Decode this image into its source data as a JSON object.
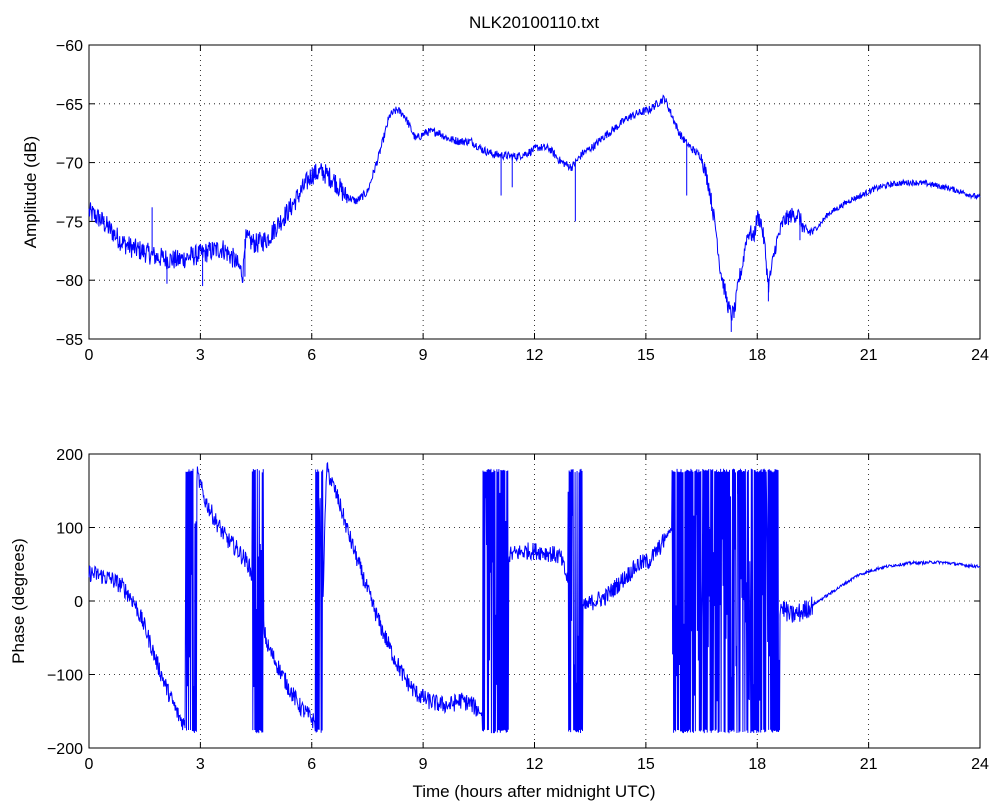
{
  "chart_data": [
    {
      "type": "line",
      "title": "NLK20100110.txt",
      "xlabel": "",
      "ylabel": "Amplitude (dB)",
      "xlim": [
        0,
        24
      ],
      "ylim": [
        -85,
        -60
      ],
      "xticks": [
        "0",
        "3",
        "6",
        "9",
        "12",
        "15",
        "18",
        "21",
        "24"
      ],
      "yticks": [
        "−60",
        "−65",
        "−70",
        "−75",
        "−80",
        "−85"
      ],
      "grid": true,
      "line_color": "#0000ff",
      "series": [
        {
          "x": [
            0,
            0.3,
            0.6,
            0.9,
            1.2,
            1.5,
            1.8,
            2.1,
            2.4,
            2.7,
            3.0,
            3.3,
            3.6,
            3.9,
            4.15,
            4.2,
            4.5,
            4.8,
            5.1,
            5.4,
            5.7,
            6.0,
            6.3,
            6.6,
            6.9,
            7.2,
            7.5,
            7.8,
            8.1,
            8.3,
            8.5,
            8.8,
            9.1,
            9.4,
            9.7,
            10.0,
            10.3,
            10.6,
            10.9,
            11.2,
            11.5,
            11.8,
            12.1,
            12.4,
            12.7,
            13.0,
            13.3,
            13.6,
            13.9,
            14.2,
            14.5,
            14.8,
            15.1,
            15.3,
            15.5,
            15.7,
            15.9,
            16.1,
            16.3,
            16.5,
            16.7,
            16.9,
            17.0,
            17.1,
            17.2,
            17.3,
            17.4,
            17.5,
            17.6,
            17.7,
            17.8,
            17.9,
            18.0,
            18.1,
            18.2,
            18.3,
            18.5,
            18.7,
            18.9,
            19.1,
            19.3,
            19.5,
            19.7,
            19.9,
            20.2,
            20.5,
            20.8,
            21.1,
            21.4,
            21.7,
            22.0,
            22.3,
            22.6,
            22.9,
            23.2,
            23.5,
            23.8,
            24.0
          ],
          "y": [
            -74.2,
            -74.8,
            -75.8,
            -76.8,
            -77.3,
            -77.6,
            -78.0,
            -78.2,
            -78.3,
            -78.0,
            -77.8,
            -77.5,
            -77.3,
            -78.2,
            -79.5,
            -76.5,
            -76.9,
            -76.5,
            -75.2,
            -74.0,
            -72.5,
            -71.0,
            -70.8,
            -71.5,
            -72.8,
            -73.3,
            -72.5,
            -69.5,
            -66.0,
            -65.5,
            -66.0,
            -68.0,
            -67.4,
            -67.4,
            -68.0,
            -68.2,
            -68.2,
            -68.9,
            -69.3,
            -69.4,
            -69.5,
            -69.2,
            -68.7,
            -68.8,
            -69.9,
            -70.4,
            -69.2,
            -68.6,
            -67.7,
            -67.0,
            -66.2,
            -65.8,
            -65.5,
            -65.0,
            -64.5,
            -66.0,
            -67.5,
            -68.4,
            -69.0,
            -69.5,
            -72.0,
            -76.0,
            -79.0,
            -80.5,
            -82.0,
            -83.0,
            -82.5,
            -80.0,
            -78.8,
            -76.5,
            -75.8,
            -76.5,
            -74.6,
            -75.0,
            -77.0,
            -80.5,
            -77.0,
            -75.0,
            -74.5,
            -74.4,
            -76.0,
            -75.8,
            -75.2,
            -74.4,
            -73.8,
            -73.2,
            -72.8,
            -72.3,
            -72.0,
            -71.8,
            -71.7,
            -71.7,
            -71.8,
            -72.0,
            -72.2,
            -72.5,
            -72.8,
            -73.0
          ],
          "spikes": [
            [
              1.7,
              -73.8
            ],
            [
              2.1,
              -80.3
            ],
            [
              3.06,
              -80.5
            ],
            [
              4.2,
              -79.7
            ],
            [
              11.1,
              -72.8
            ],
            [
              11.4,
              -72.1
            ],
            [
              13.1,
              -75.0
            ],
            [
              16.1,
              -72.8
            ],
            [
              17.3,
              -84.4
            ],
            [
              18.3,
              -81.8
            ],
            [
              19.15,
              -76.6
            ]
          ]
        }
      ]
    },
    {
      "type": "line",
      "title": "",
      "xlabel": "Time (hours after midnight UTC)",
      "ylabel": "Phase (degrees)",
      "xlim": [
        0,
        24
      ],
      "ylim": [
        -200,
        200
      ],
      "xticks": [
        "0",
        "3",
        "6",
        "9",
        "12",
        "15",
        "18",
        "21",
        "24"
      ],
      "yticks": [
        "200",
        "100",
        "0",
        "−100",
        "−200"
      ],
      "grid": true,
      "line_color": "#0000ff",
      "series": [
        {
          "x": [
            0,
            0.3,
            0.6,
            0.9,
            1.2,
            1.5,
            1.8,
            2.1,
            2.4,
            2.6,
            2.8,
            2.9,
            3.1,
            3.4,
            3.7,
            4.0,
            4.3,
            4.6,
            4.8,
            5.1,
            5.4,
            5.7,
            6.0,
            6.2,
            6.4,
            6.7,
            7.0,
            7.3,
            7.6,
            7.9,
            8.2,
            8.5,
            8.8,
            9.1,
            9.4,
            9.7,
            10.0,
            10.3,
            10.6,
            10.9,
            11.2,
            11.5,
            11.8,
            12.1,
            12.4,
            12.7,
            13.0,
            13.3,
            13.6,
            13.9,
            14.2,
            14.5,
            14.8,
            15.1,
            15.4,
            15.7,
            16.0,
            16.5,
            17.0,
            17.5,
            18.0,
            18.5,
            18.9,
            19.2,
            19.5,
            19.8,
            20.1,
            20.4,
            20.7,
            21.0,
            21.3,
            21.6,
            21.9,
            22.2,
            22.5,
            22.8,
            23.1,
            23.4,
            23.7,
            24.0
          ],
          "y": [
            38,
            35,
            30,
            20,
            0,
            -35,
            -80,
            -120,
            -155,
            -170,
            160,
            175,
            140,
            110,
            85,
            70,
            50,
            -10,
            -60,
            -90,
            -120,
            -145,
            -160,
            -175,
            180,
            140,
            90,
            45,
            0,
            -40,
            -75,
            -105,
            -125,
            -135,
            -140,
            -142,
            -135,
            -140,
            -155,
            40,
            60,
            65,
            68,
            68,
            65,
            60,
            10,
            -10,
            0,
            5,
            20,
            35,
            50,
            55,
            75,
            100,
            0,
            0,
            0,
            0,
            0,
            0,
            -20,
            -15,
            -5,
            5,
            15,
            25,
            35,
            40,
            45,
            48,
            50,
            52,
            52,
            53,
            52,
            50,
            48,
            47
          ],
          "wraps": [
            [
              2.6,
              2.9
            ],
            [
              4.4,
              4.7
            ],
            [
              6.1,
              6.3
            ],
            [
              10.6,
              11.3
            ],
            [
              12.9,
              13.3
            ],
            [
              15.7,
              18.6
            ]
          ]
        }
      ]
    }
  ]
}
